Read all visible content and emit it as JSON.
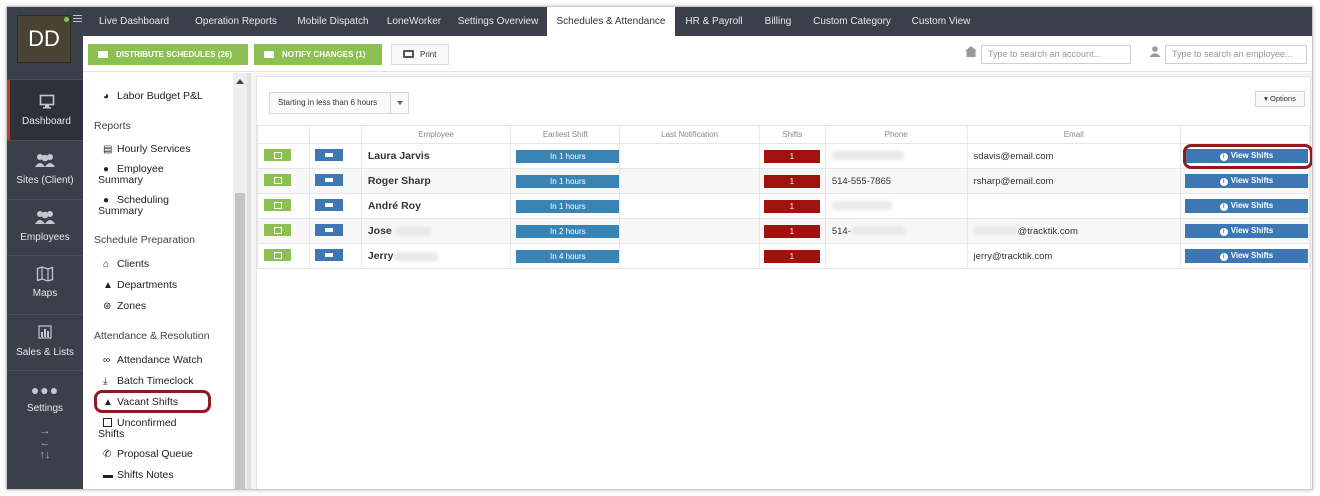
{
  "user": {
    "initials": "DD"
  },
  "leftnav": [
    {
      "label": "Dashboard",
      "icon": "monitor-icon"
    },
    {
      "label": "Sites (Client)",
      "icon": "people-icon"
    },
    {
      "label": "Employees",
      "icon": "people-icon"
    },
    {
      "label": "Maps",
      "icon": "map-icon"
    },
    {
      "label": "Sales & Lists",
      "icon": "bar-chart-icon"
    },
    {
      "label": "Settings",
      "icon": "dots-icon"
    }
  ],
  "tabs": [
    "Live Dashboard",
    "Operation Reports",
    "Mobile Dispatch",
    "LoneWorker",
    "Settings Overview",
    "Schedules & Attendance",
    "HR & Payroll",
    "Billing",
    "Custom Category",
    "Custom View"
  ],
  "active_tab": "Schedules & Attendance",
  "actions": {
    "distribute": "DISTRIBUTE SCHEDULES (26)",
    "notify": "NOTIFY CHANGES (1)",
    "print": "Print"
  },
  "search": {
    "account_placeholder": "Type to search an account...",
    "employee_placeholder": "Type to search an employee..."
  },
  "sidemenu": {
    "top_item": "Labor Budget P&L",
    "reports_heading": "Reports",
    "hourly_services": "Hourly Services",
    "employee_summary_1": "Employee",
    "employee_summary_2": "Summary",
    "scheduling_summary_1": "Scheduling",
    "scheduling_summary_2": "Summary",
    "prep_heading": "Schedule Preparation",
    "clients": "Clients",
    "departments": "Departments",
    "zones": "Zones",
    "attendance_heading": "Attendance & Resolution",
    "attendance_watch": "Attendance Watch",
    "batch_timeclock": "Batch Timeclock",
    "vacant_shifts": "Vacant Shifts",
    "unconfirmed_1": "Unconfirmed",
    "unconfirmed_2": "Shifts",
    "proposal_queue": "Proposal Queue",
    "shifts_notes": "Shifts Notes"
  },
  "filter": {
    "value": "Starting in less than 6 hours"
  },
  "options_label": "▾ Options",
  "table": {
    "headers": [
      "",
      "",
      "Employee",
      "Earliest Shift",
      "Last Notification",
      "Shifts",
      "Phone",
      "Email",
      ""
    ],
    "rows": [
      {
        "employee": "Laura Jarvis",
        "earliest": "In 1 hours",
        "shifts": "1",
        "phone": "",
        "email": "sdavis@email.com",
        "action": "View Shifts"
      },
      {
        "employee": "Roger Sharp",
        "earliest": "In 1 hours",
        "shifts": "1",
        "phone": "514-555-7865",
        "email": "rsharp@email.com",
        "action": "View Shifts"
      },
      {
        "employee": "André Roy",
        "earliest": "In 1 hours",
        "shifts": "1",
        "phone": "",
        "email": "",
        "action": "View Shifts"
      },
      {
        "employee": "Jose",
        "earliest": "In 2 hours",
        "shifts": "1",
        "phone": "514-",
        "email": "@tracktik.com",
        "action": "View Shifts"
      },
      {
        "employee": "Jerry",
        "earliest": "In 4 hours",
        "shifts": "1",
        "phone": "",
        "email": "jerry@tracktik.com",
        "action": "View Shifts"
      }
    ]
  },
  "colors": {
    "nav": "#3a3f4a",
    "green": "#8cc152",
    "blue": "#3d78b4",
    "red": "#a0120e",
    "highlight": "#8b1c22"
  }
}
